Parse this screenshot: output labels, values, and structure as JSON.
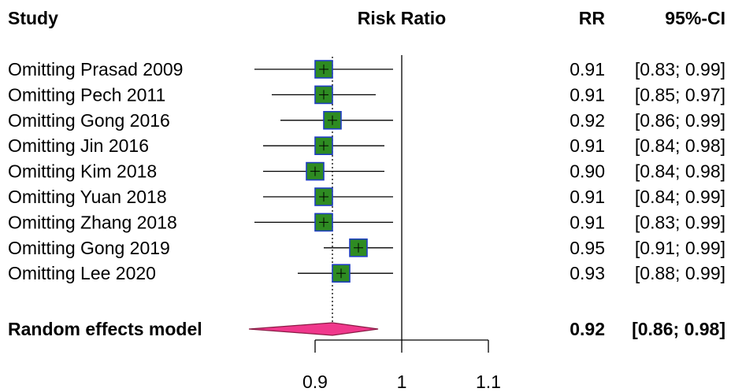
{
  "chart_data": {
    "type": "forest",
    "headers": {
      "study": "Study",
      "plot": "Risk Ratio",
      "rr": "RR",
      "ci": "95%-CI"
    },
    "studies": [
      {
        "label": "Omitting Prasad 2009",
        "rr": 0.91,
        "lower": 0.83,
        "upper": 0.99,
        "rr_text": "0.91",
        "ci_text": "[0.83; 0.99]"
      },
      {
        "label": "Omitting Pech 2011",
        "rr": 0.91,
        "lower": 0.85,
        "upper": 0.97,
        "rr_text": "0.91",
        "ci_text": "[0.85; 0.97]"
      },
      {
        "label": "Omitting Gong 2016",
        "rr": 0.92,
        "lower": 0.86,
        "upper": 0.99,
        "rr_text": "0.92",
        "ci_text": "[0.86; 0.99]"
      },
      {
        "label": "Omitting Jin 2016",
        "rr": 0.91,
        "lower": 0.84,
        "upper": 0.98,
        "rr_text": "0.91",
        "ci_text": "[0.84; 0.98]"
      },
      {
        "label": "Omitting Kim 2018",
        "rr": 0.9,
        "lower": 0.84,
        "upper": 0.98,
        "rr_text": "0.90",
        "ci_text": "[0.84; 0.98]"
      },
      {
        "label": "Omitting Yuan 2018",
        "rr": 0.91,
        "lower": 0.84,
        "upper": 0.99,
        "rr_text": "0.91",
        "ci_text": "[0.84; 0.99]"
      },
      {
        "label": "Omitting Zhang 2018",
        "rr": 0.91,
        "lower": 0.83,
        "upper": 0.99,
        "rr_text": "0.91",
        "ci_text": "[0.83; 0.99]"
      },
      {
        "label": "Omitting Gong 2019",
        "rr": 0.95,
        "lower": 0.91,
        "upper": 0.99,
        "rr_text": "0.95",
        "ci_text": "[0.91; 0.99]"
      },
      {
        "label": "Omitting Lee 2020",
        "rr": 0.93,
        "lower": 0.88,
        "upper": 0.99,
        "rr_text": "0.93",
        "ci_text": "[0.88; 0.99]"
      }
    ],
    "summary": {
      "label": "Random effects model",
      "rr": 0.92,
      "lower": 0.86,
      "upper": 0.98,
      "rr_text": "0.92",
      "ci_text": "[0.86; 0.98]"
    },
    "x_ticks": [
      0.9,
      1,
      1.1
    ],
    "x_tick_labels": [
      "0.9",
      "1",
      "1.1"
    ],
    "reference_line": 1,
    "colors": {
      "box_fill": "#2e8b22",
      "box_border": "#1f3ec2",
      "diamond_fill": "#f0388c",
      "diamond_border": "#8a1b45",
      "line": "#000000"
    }
  }
}
